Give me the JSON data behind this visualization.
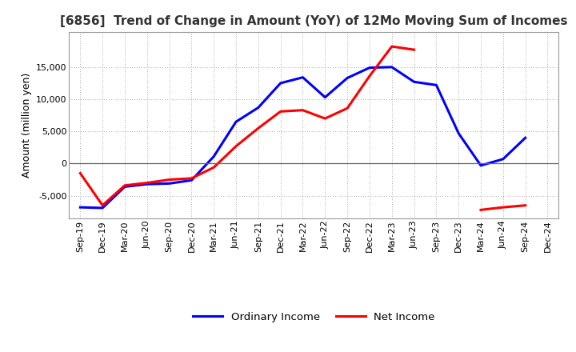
{
  "title": "[6856]  Trend of Change in Amount (YoY) of 12Mo Moving Sum of Incomes",
  "ylabel": "Amount (million yen)",
  "x_labels": [
    "Sep-19",
    "Dec-19",
    "Mar-20",
    "Jun-20",
    "Sep-20",
    "Dec-20",
    "Mar-21",
    "Jun-21",
    "Sep-21",
    "Dec-21",
    "Mar-22",
    "Jun-22",
    "Sep-22",
    "Dec-22",
    "Mar-23",
    "Jun-23",
    "Sep-23",
    "Dec-23",
    "Mar-24",
    "Jun-24",
    "Sep-24",
    "Dec-24"
  ],
  "ordinary_income": [
    -6800,
    -6900,
    -3600,
    -3200,
    -3100,
    -2600,
    1100,
    6500,
    8700,
    12500,
    13400,
    10300,
    13300,
    14900,
    15000,
    12700,
    12200,
    4700,
    -300,
    700,
    4000,
    null
  ],
  "net_income": [
    -1500,
    -6500,
    -3400,
    -3000,
    -2500,
    -2300,
    -600,
    2700,
    5500,
    8100,
    8300,
    7000,
    8600,
    13600,
    18200,
    17700,
    null,
    null,
    -7200,
    -6800,
    -6500,
    null
  ],
  "ordinary_color": "#0000ff",
  "net_color": "#ff0000",
  "background_color": "#ffffff",
  "grid_color": "#aaaaaa",
  "ylim": [
    -8500,
    20500
  ],
  "yticks": [
    -5000,
    0,
    5000,
    10000,
    15000
  ],
  "legend_labels": [
    "Ordinary Income",
    "Net Income"
  ]
}
